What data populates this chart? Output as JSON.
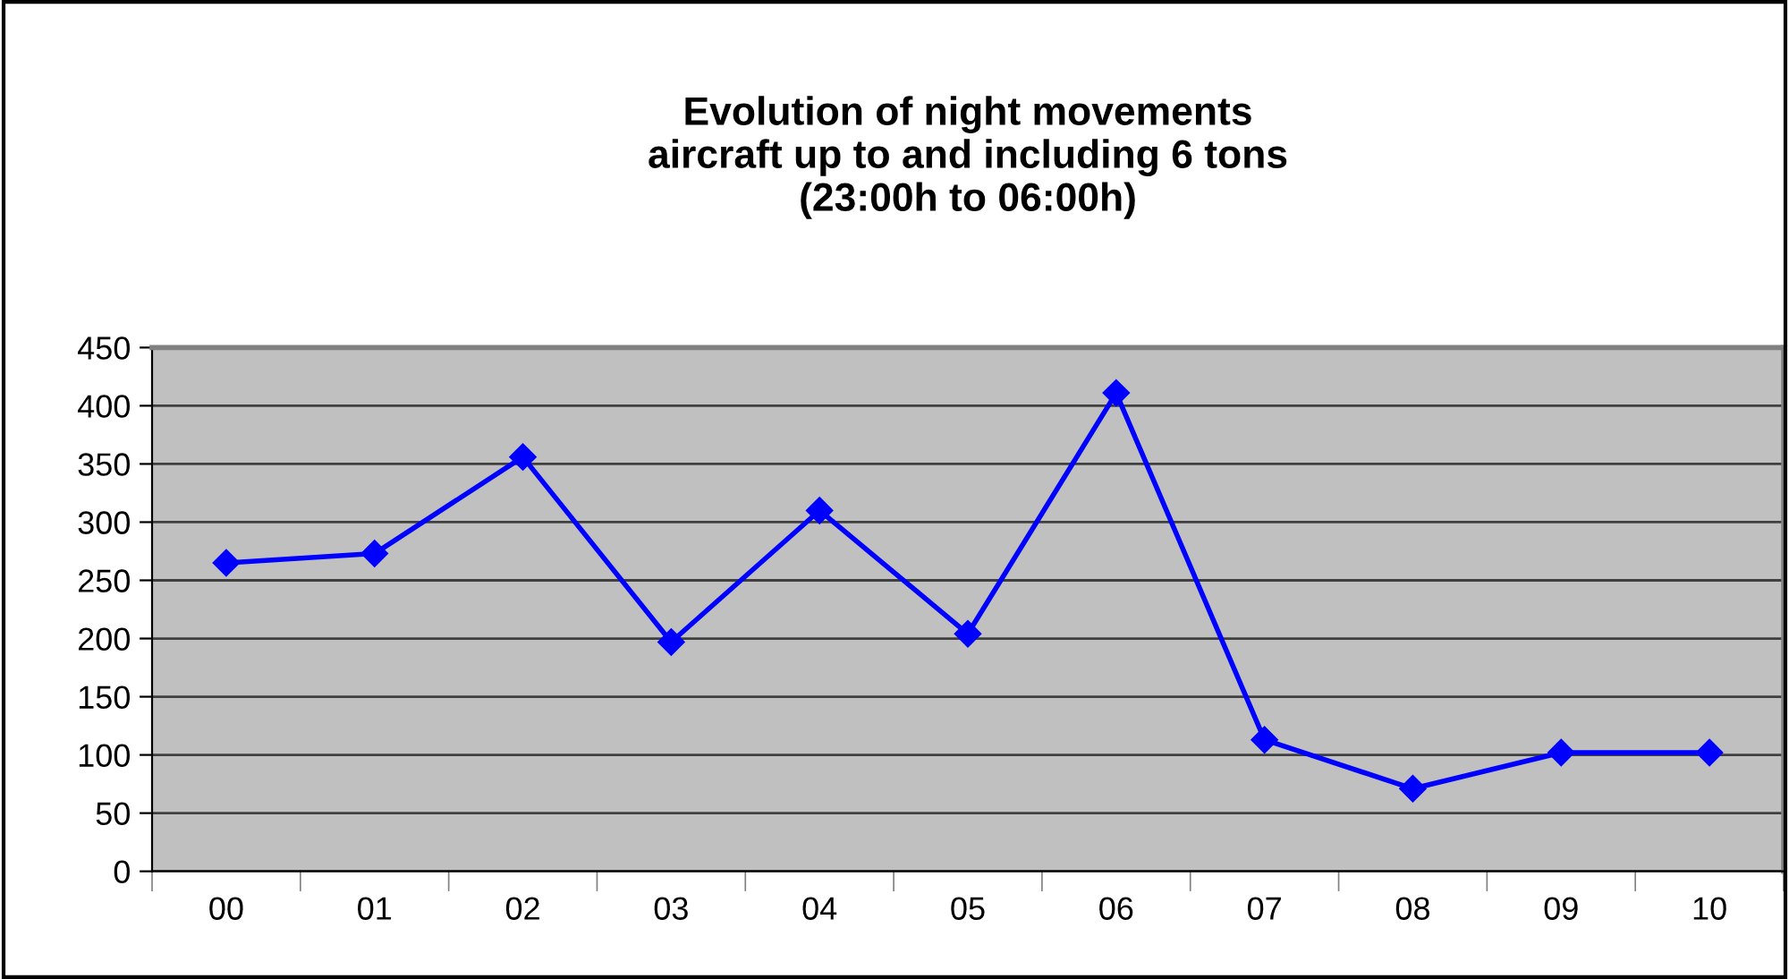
{
  "chart_data": {
    "type": "line",
    "title": "Evolution of night movements\naircraft up to and including 6 tons\n(23:00h to 06:00h)",
    "categories": [
      "00",
      "01",
      "02",
      "03",
      "04",
      "05",
      "06",
      "07",
      "08",
      "09",
      "10"
    ],
    "series": [
      {
        "color": "#0000ff",
        "values": [
          265,
          273,
          356,
          197,
          310,
          204,
          411,
          113,
          71,
          102,
          102
        ]
      }
    ],
    "ylim": [
      0,
      450
    ],
    "yticks": [
      0,
      50,
      100,
      150,
      200,
      250,
      300,
      350,
      400,
      450
    ],
    "grid": "y",
    "marker": "diamond",
    "line_style": "solid"
  }
}
